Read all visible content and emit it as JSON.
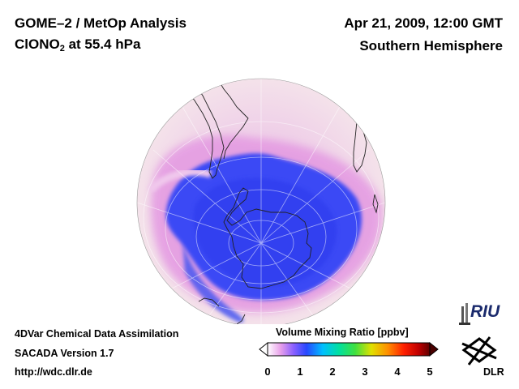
{
  "header": {
    "title_line1": "GOME–2 / MetOp Analysis",
    "species_prefix": "ClONO",
    "species_subscript": "2",
    "species_suffix": " at 55.4 hPa",
    "date": "Apr 21, 2009, 12:00 GMT",
    "hemisphere": "Southern Hemisphere"
  },
  "footer": {
    "line1": "4DVar Chemical Data Assimilation",
    "line2": "SACADA Version 1.7",
    "line3": "http://wdc.dlr.de"
  },
  "colorbar": {
    "title": "Volume Mixing Ratio [ppbv]",
    "ticks": [
      "0",
      "1",
      "2",
      "3",
      "4",
      "5"
    ],
    "range": [
      0,
      5
    ],
    "colors": [
      "#ffffff",
      "#e070e0",
      "#8060ff",
      "#2040ff",
      "#00c0ff",
      "#00e0a0",
      "#40e040",
      "#e0e000",
      "#ff9000",
      "#ff2000",
      "#c00000",
      "#600000"
    ]
  },
  "logos": {
    "riu": "RIU",
    "dlr": "DLR"
  },
  "map": {
    "projection": "orthographic, south polar",
    "colors": {
      "background_field": "#f3dfe8",
      "low_values": "#3a48f5",
      "mid_values": "#e8a8e6",
      "coastline": "#222222",
      "grid": "#ffffff"
    }
  }
}
